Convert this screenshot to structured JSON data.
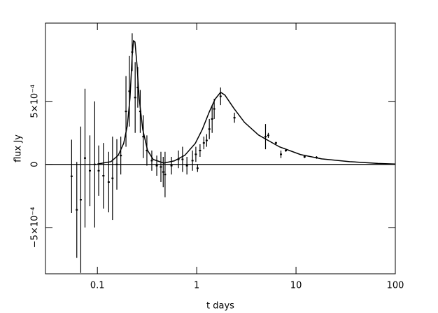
{
  "chart_data": {
    "type": "errorbar",
    "x_label": "t days",
    "y_label": "flux Jy",
    "xlog": true,
    "xlim": [
      0.03,
      100
    ],
    "xticks": [
      0.1,
      1,
      10,
      100
    ],
    "ylim": [
      -0.000867,
      0.00112
    ],
    "yticks": [
      {
        "value": -0.0005,
        "label": "−5×10⁻⁴"
      },
      0,
      {
        "value": 0.0005,
        "label": "5×10⁻⁴"
      }
    ],
    "hline": 0,
    "color": "#000000",
    "points": {
      "x": [
        0.055,
        0.062,
        0.068,
        0.075,
        0.084,
        0.094,
        0.103,
        0.115,
        0.13,
        0.142,
        0.157,
        0.172,
        0.194,
        0.21,
        0.224,
        0.24,
        0.255,
        0.27,
        0.29,
        0.315,
        0.353,
        0.396,
        0.436,
        0.46,
        0.48,
        0.557,
        0.655,
        0.72,
        0.797,
        0.907,
        0.98,
        1.02,
        1.08,
        1.18,
        1.26,
        1.34,
        1.43,
        1.5,
        1.74,
        2.4,
        4.93,
        5.26,
        6.28,
        7.05,
        7.9,
        12.2,
        16.1
      ],
      "values": [
        -9.4e-05,
        -0.00036,
        -0.00028,
        5e-05,
        -5e-05,
        0,
        -5e-05,
        -9e-05,
        -0.00014,
        -0.00011,
        0,
        7e-05,
        0.00042,
        0.00058,
        0.00089,
        0.00053,
        0.00061,
        0.00042,
        0.00022,
        0.00011,
        3e-05,
        -1e-05,
        -2e-05,
        -6e-05,
        -8e-05,
        -1e-05,
        4e-05,
        4e-05,
        -1e-05,
        3e-05,
        8e-05,
        -3e-05,
        0.00011,
        0.00017,
        0.00019,
        0.00028,
        0.00036,
        0.00044,
        0.00054,
        0.00037,
        0.00022,
        0.00023,
        0.00017,
        8e-05,
        0.00011,
        6e-05,
        5.5e-05
      ],
      "errors": [
        0.00029,
        0.00038,
        0.00058,
        0.00055,
        0.00028,
        0.0005,
        0.0002,
        0.00026,
        0.00024,
        0.00033,
        0.0002,
        0.00015,
        0.00028,
        0.00028,
        0.00015,
        0.00028,
        0.00016,
        0.00017,
        0.00017,
        0.00012,
        8e-05,
        8e-05,
        0.00012,
        0.00012,
        0.00018,
        7e-05,
        7e-05,
        0.0001,
        7e-05,
        8e-05,
        6e-05,
        3e-05,
        5e-05,
        5e-05,
        5e-05,
        8e-05,
        0.00011,
        8e-05,
        7e-05,
        4e-05,
        0.0001,
        2e-05,
        1e-05,
        3e-05,
        1e-05,
        1e-05,
        1e-05
      ]
    },
    "model": {
      "x": [
        0.1,
        0.137,
        0.162,
        0.184,
        0.2,
        0.213,
        0.224,
        0.231,
        0.239,
        0.251,
        0.263,
        0.286,
        0.32,
        0.365,
        0.466,
        0.594,
        0.759,
        0.968,
        1.14,
        1.34,
        1.53,
        1.74,
        1.92,
        2.37,
        3.03,
        4.19,
        6.82,
        11.1,
        18.1,
        34.7,
        66.6,
        100
      ],
      "values": [
        3e-06,
        2.2e-05,
        7.2e-05,
        0.000167,
        0.000306,
        0.000528,
        0.00086,
        0.00098,
        0.00097,
        0.00078,
        0.000528,
        0.000278,
        0.000111,
        3.9e-05,
        1.1e-05,
        2.8e-05,
        7.2e-05,
        0.000167,
        0.000278,
        0.000417,
        0.000517,
        0.000572,
        0.00055,
        0.000444,
        0.000333,
        0.000233,
        0.000139,
        7.8e-05,
        4.4e-05,
        2.2e-05,
        8e-06,
        3e-06
      ]
    }
  }
}
